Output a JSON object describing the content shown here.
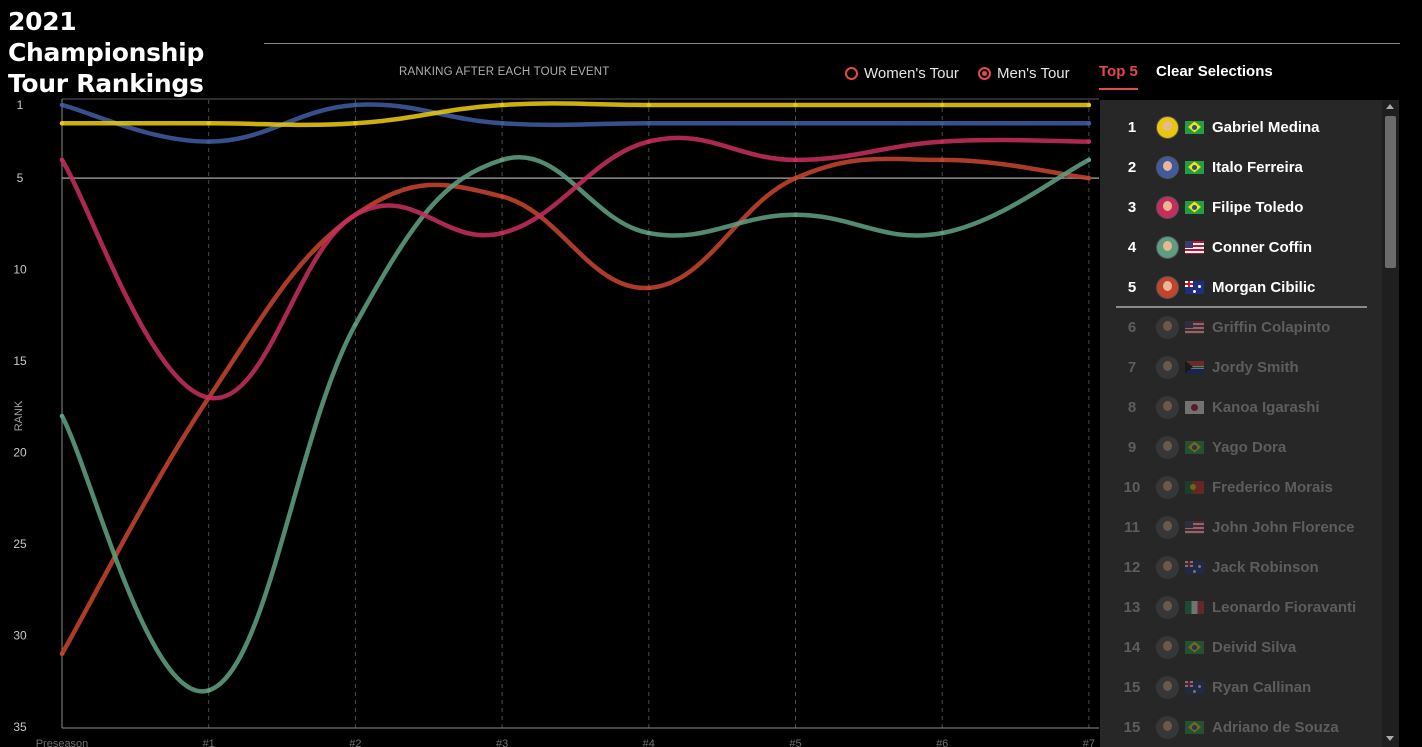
{
  "header": {
    "title": "2021 Championship Tour Rankings",
    "subtitle": "RANKING AFTER EACH TOUR EVENT",
    "womens_tour": "Women's Tour",
    "mens_tour": "Men's Tour",
    "selected_tour": "Men's Tour",
    "top5": "Top 5",
    "clear": "Clear Selections"
  },
  "chart_data": {
    "type": "line",
    "subtitle": "RANKING AFTER EACH TOUR EVENT",
    "ylabel": "RANK",
    "y_ticks": [
      1,
      5,
      10,
      15,
      20,
      25,
      30,
      35
    ],
    "ylim": [
      1,
      35
    ],
    "y_inverted": true,
    "x": [
      "Preseason",
      "#1",
      "#2",
      "#3",
      "#4",
      "#5",
      "#6",
      "#7"
    ],
    "reference_line": 5,
    "series": [
      {
        "name": "Gabriel Medina",
        "color": "#e8c80f",
        "values": [
          2,
          2,
          2,
          1,
          1,
          1,
          1,
          1
        ]
      },
      {
        "name": "Italo Ferreira",
        "color": "#3f5a9e",
        "values": [
          1,
          3,
          1,
          2,
          2,
          2,
          2,
          2
        ]
      },
      {
        "name": "Filipe Toledo",
        "color": "#c42d5c",
        "values": [
          4,
          17,
          7,
          8,
          3,
          4,
          3,
          3
        ]
      },
      {
        "name": "Conner Coffin",
        "color": "#5d9e7e",
        "values": [
          18,
          33,
          13,
          4,
          8,
          7,
          8,
          4
        ]
      },
      {
        "name": "Morgan Cibilic",
        "color": "#c4432e",
        "values": [
          31,
          17,
          7,
          6,
          11,
          5,
          4,
          5
        ]
      }
    ]
  },
  "rankings": [
    {
      "rank": "1",
      "name": "Gabriel Medina",
      "flag": "br",
      "color": "#e8c80f",
      "active": true
    },
    {
      "rank": "2",
      "name": "Italo Ferreira",
      "flag": "br",
      "color": "#3f5a9e",
      "active": true
    },
    {
      "rank": "3",
      "name": "Filipe Toledo",
      "flag": "br",
      "color": "#c42d5c",
      "active": true
    },
    {
      "rank": "4",
      "name": "Conner Coffin",
      "flag": "us",
      "color": "#5d9e7e",
      "active": true
    },
    {
      "rank": "5",
      "name": "Morgan Cibilic",
      "flag": "au",
      "color": "#c4432e",
      "active": true
    },
    {
      "rank": "6",
      "name": "Griffin Colapinto",
      "flag": "us",
      "color": "#555555",
      "active": false
    },
    {
      "rank": "7",
      "name": "Jordy Smith",
      "flag": "za",
      "color": "#555555",
      "active": false
    },
    {
      "rank": "8",
      "name": "Kanoa Igarashi",
      "flag": "jp",
      "color": "#555555",
      "active": false
    },
    {
      "rank": "9",
      "name": "Yago Dora",
      "flag": "br",
      "color": "#555555",
      "active": false
    },
    {
      "rank": "10",
      "name": "Frederico Morais",
      "flag": "pt",
      "color": "#555555",
      "active": false
    },
    {
      "rank": "11",
      "name": "John John Florence",
      "flag": "us",
      "color": "#555555",
      "active": false
    },
    {
      "rank": "12",
      "name": "Jack Robinson",
      "flag": "au",
      "color": "#555555",
      "active": false
    },
    {
      "rank": "13",
      "name": "Leonardo Fioravanti",
      "flag": "it",
      "color": "#555555",
      "active": false
    },
    {
      "rank": "14",
      "name": "Deivid Silva",
      "flag": "br",
      "color": "#555555",
      "active": false
    },
    {
      "rank": "15",
      "name": "Ryan Callinan",
      "flag": "au",
      "color": "#555555",
      "active": false
    },
    {
      "rank": "15",
      "name": "Adriano de Souza",
      "flag": "br",
      "color": "#555555",
      "active": false
    }
  ]
}
